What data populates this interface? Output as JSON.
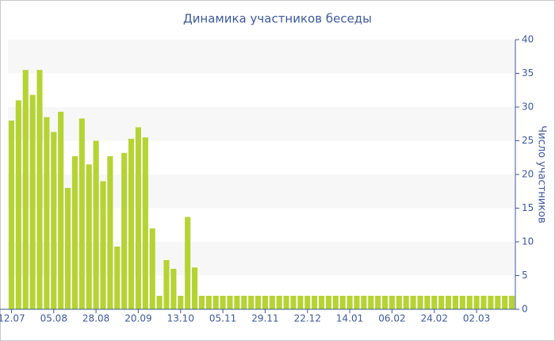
{
  "chart_data": {
    "type": "bar",
    "title": "Динамика участников беседы",
    "y_label": "Число участников",
    "categories": [
      "12.07",
      null,
      null,
      null,
      null,
      null,
      "05.08",
      null,
      null,
      null,
      null,
      null,
      "28.08",
      null,
      null,
      null,
      null,
      null,
      "20.09",
      null,
      null,
      null,
      null,
      null,
      "13.10",
      null,
      null,
      null,
      null,
      null,
      "05.11",
      null,
      null,
      null,
      null,
      null,
      "29.11",
      null,
      null,
      null,
      null,
      null,
      "22.12",
      null,
      null,
      null,
      null,
      null,
      "14.01",
      null,
      null,
      null,
      null,
      null,
      "06.02",
      null,
      null,
      null,
      null,
      null,
      "24.02",
      null,
      null,
      null,
      null,
      null,
      "02.03",
      null,
      null,
      null,
      null,
      null
    ],
    "values": [
      28,
      31,
      35.5,
      31.8,
      35.5,
      28.5,
      26.3,
      29.3,
      18,
      22.7,
      28.3,
      21.5,
      25,
      19,
      22.7,
      9.3,
      23.2,
      25.3,
      27,
      25.5,
      12,
      2,
      7.3,
      6,
      2,
      13.7,
      6.2,
      2,
      2,
      2,
      2,
      2,
      2,
      2,
      2,
      2,
      2,
      2,
      2,
      2,
      2,
      2,
      2,
      2,
      2,
      2,
      2,
      2,
      2,
      2,
      2,
      2,
      2,
      2,
      2,
      2,
      2,
      2,
      2,
      2,
      2,
      2,
      2,
      2,
      2,
      2,
      2,
      2,
      2,
      2,
      2,
      2
    ],
    "color": "#b5d334",
    "ylim": [
      0,
      40
    ],
    "yticks": [
      0,
      5,
      10,
      15,
      20,
      25,
      30,
      35,
      40
    ],
    "y_axis_side": "right",
    "grid": "banded"
  }
}
